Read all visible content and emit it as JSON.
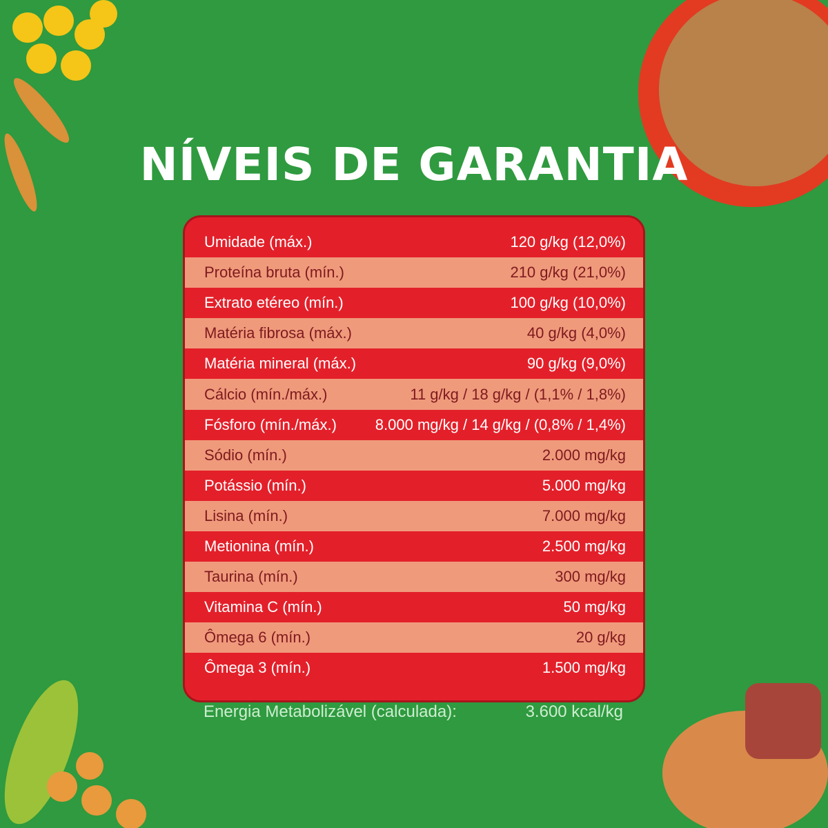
{
  "header": {
    "title": "NÍVEIS DE GARANTIA"
  },
  "table": {
    "rows": [
      [
        "Umidade (máx.)",
        "120 g/kg (12,0%)"
      ],
      [
        "Proteína bruta (mín.)",
        "210 g/kg (21,0%)"
      ],
      [
        "Extrato etéreo (mín.)",
        "100 g/kg (10,0%)"
      ],
      [
        "Matéria fibrosa (máx.)",
        "40 g/kg (4,0%)"
      ],
      [
        "Matéria mineral (máx.)",
        "90 g/kg (9,0%)"
      ],
      [
        "Cálcio (mín./máx.)",
        "11 g/kg / 18 g/kg / (1,1% / 1,8%)"
      ],
      [
        "Fósforo (mín./máx.)",
        "8.000 mg/kg / 14 g/kg / (0,8% / 1,4%)"
      ],
      [
        "Sódio (mín.)",
        "2.000 mg/kg"
      ],
      [
        "Potássio (mín.)",
        "5.000 mg/kg"
      ],
      [
        "Lisina (mín.)",
        "7.000 mg/kg"
      ],
      [
        "Metionina (mín.)",
        "2.500 mg/kg"
      ],
      [
        "Taurina (mín.)",
        "300 mg/kg"
      ],
      [
        "Vitamina C (mín.)",
        "50 mg/kg"
      ],
      [
        "Ômega 6 (mín.)",
        "20 g/kg"
      ],
      [
        "Ômega 3 (mín.)",
        "1.500 mg/kg"
      ]
    ]
  },
  "footer": {
    "label": "Energia Metabolizável (calculada):",
    "value": "3.600 kcal/kg"
  }
}
